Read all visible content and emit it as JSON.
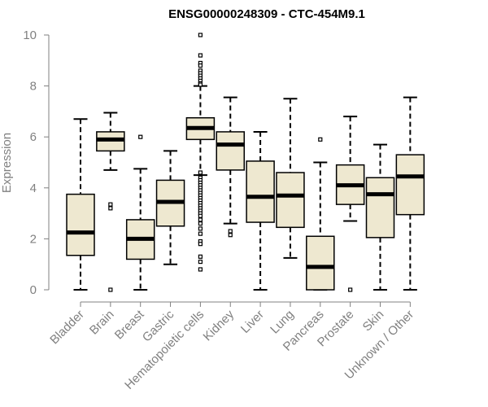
{
  "chart_data": {
    "type": "boxplot",
    "title": "ENSG00000248309 - CTC-454M9.1",
    "xlabel": "",
    "ylabel": "Expression",
    "ylim": [
      0,
      10
    ],
    "yticks": [
      0,
      2,
      4,
      6,
      8,
      10
    ],
    "colors": {
      "box_fill": "#eee8d0",
      "box_stroke": "#000000",
      "axis": "#808080"
    },
    "categories": [
      "Bladder",
      "Brain",
      "Breast",
      "Gastric",
      "Hematopoietic cells",
      "Kidney",
      "Liver",
      "Lung",
      "Pancreas",
      "Prostate",
      "Skin",
      "Unknown / Other"
    ],
    "boxes": [
      {
        "whisker_low": 0.0,
        "q1": 1.35,
        "median": 2.25,
        "q3": 3.75,
        "whisker_high": 6.7,
        "outliers": []
      },
      {
        "whisker_low": 4.7,
        "q1": 5.45,
        "median": 5.9,
        "q3": 6.2,
        "whisker_high": 6.95,
        "outliers": [
          3.2,
          3.35,
          0.0
        ]
      },
      {
        "whisker_low": 0.0,
        "q1": 1.2,
        "median": 2.0,
        "q3": 2.75,
        "whisker_high": 4.75,
        "outliers": [
          6.0
        ]
      },
      {
        "whisker_low": 1.0,
        "q1": 2.5,
        "median": 3.45,
        "q3": 4.3,
        "whisker_high": 5.45,
        "outliers": []
      },
      {
        "whisker_low": 4.5,
        "q1": 5.9,
        "median": 6.35,
        "q3": 6.75,
        "whisker_high": 8.0,
        "outliers": [
          10.0,
          9.2,
          8.9,
          8.8,
          8.6,
          8.5,
          8.4,
          8.3,
          8.2,
          8.1,
          8.05,
          4.6,
          4.4,
          4.3,
          4.2,
          4.1,
          4.0,
          3.9,
          3.8,
          3.7,
          3.6,
          3.5,
          3.4,
          3.3,
          3.2,
          3.1,
          3.0,
          2.9,
          2.75,
          2.6,
          2.4,
          2.2,
          1.9,
          1.8,
          1.3,
          1.1,
          0.8
        ]
      },
      {
        "whisker_low": 2.6,
        "q1": 4.7,
        "median": 5.7,
        "q3": 6.2,
        "whisker_high": 7.55,
        "outliers": [
          2.3,
          2.15
        ]
      },
      {
        "whisker_low": 0.0,
        "q1": 2.65,
        "median": 3.65,
        "q3": 5.05,
        "whisker_high": 6.2,
        "outliers": []
      },
      {
        "whisker_low": 1.25,
        "q1": 2.45,
        "median": 3.7,
        "q3": 4.6,
        "whisker_high": 7.5,
        "outliers": []
      },
      {
        "whisker_low": 0.0,
        "q1": 0.0,
        "median": 0.9,
        "q3": 2.1,
        "whisker_high": 5.0,
        "outliers": [
          5.9
        ]
      },
      {
        "whisker_low": 2.7,
        "q1": 3.35,
        "median": 4.1,
        "q3": 4.9,
        "whisker_high": 6.8,
        "outliers": [
          0.0
        ]
      },
      {
        "whisker_low": 0.0,
        "q1": 2.05,
        "median": 3.75,
        "q3": 4.4,
        "whisker_high": 5.7,
        "outliers": []
      },
      {
        "whisker_low": 0.0,
        "q1": 2.95,
        "median": 4.45,
        "q3": 5.3,
        "whisker_high": 7.55,
        "outliers": []
      }
    ]
  }
}
